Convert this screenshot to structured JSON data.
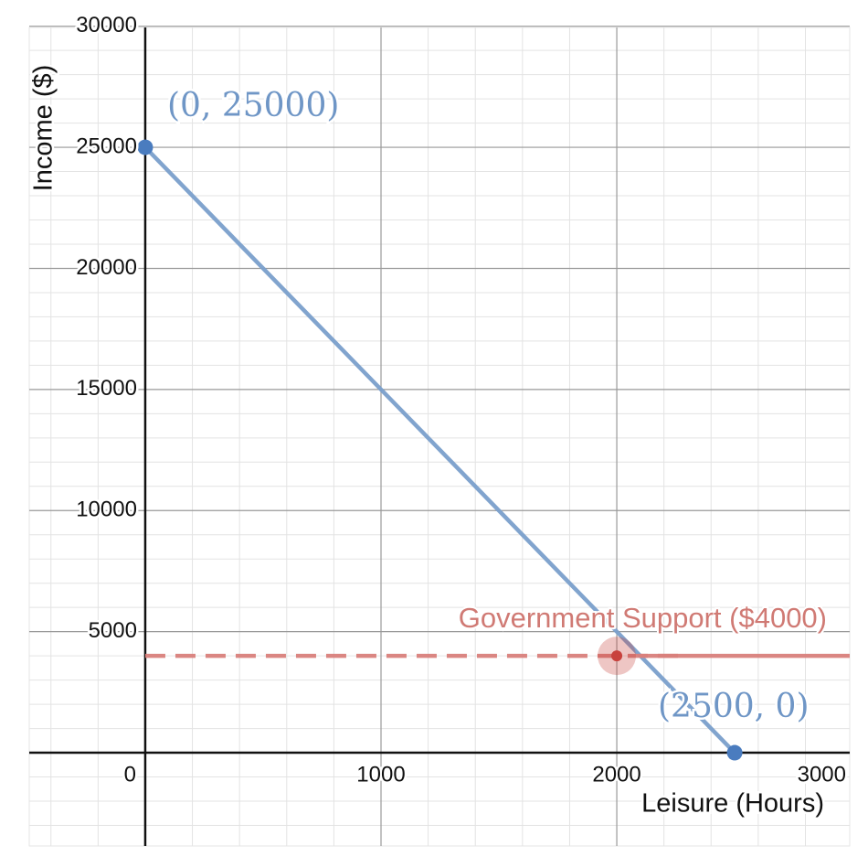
{
  "chart_data": {
    "type": "line",
    "x_label": "Leisure (Hours)",
    "y_label": "Income ($)",
    "xlim": [
      -492,
      2988
    ],
    "ylim": [
      -3850,
      29950
    ],
    "xticks": [
      0,
      1000,
      2000,
      3000
    ],
    "yticks": [
      5000,
      10000,
      15000,
      20000,
      25000,
      30000
    ],
    "grid": true,
    "series": [
      {
        "color": "#7a9fcb",
        "marker_color": "#4a7cbf",
        "x": [
          0,
          2500
        ],
        "values": [
          25000,
          0
        ]
      },
      {
        "color": "#d9807b",
        "dash": true,
        "x": [
          0,
          2300
        ],
        "values": [
          4000,
          4000
        ]
      },
      {
        "color": "#d9807b",
        "x": [
          2100,
          2988
        ],
        "values": [
          4000,
          4000
        ]
      }
    ],
    "point": {
      "x": 2000,
      "y": 4000,
      "color": "#c8423d"
    },
    "annotations": [
      {
        "text": "(0, 25000)",
        "color": "#6f96c6"
      },
      {
        "text": "(2500, 0)",
        "color": "#6f96c6"
      },
      {
        "text": "Government Support ($4000)",
        "color": "#d07a74"
      }
    ]
  }
}
